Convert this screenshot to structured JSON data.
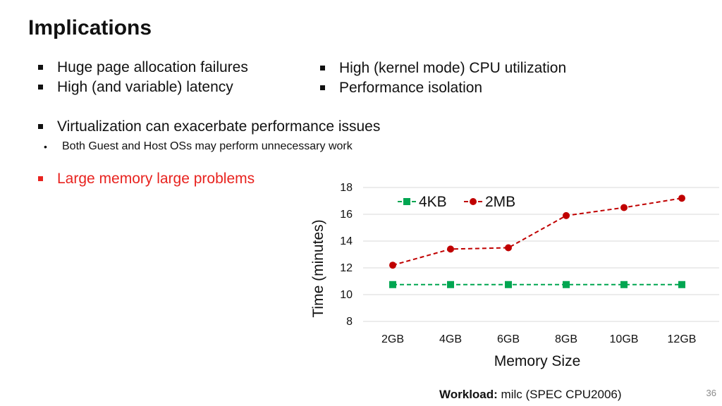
{
  "slide": {
    "title": "Implications",
    "bullets_left": [
      "Huge page allocation failures",
      "High (and variable) latency"
    ],
    "bullets_right": [
      "High (kernel mode) CPU utilization",
      "Performance isolation"
    ],
    "virtualization": {
      "text": "Virtualization can exacerbate performance issues",
      "sub": "Both Guest and Host OSs may perform unnecessary work"
    },
    "highlight": {
      "text": "Large memory large problems",
      "color": "#e8231f"
    },
    "workload": {
      "label": "Workload:",
      "value": "milc (SPEC CPU2006)"
    },
    "page_number": "36"
  },
  "chart_data": {
    "type": "line",
    "categories": [
      "2GB",
      "4GB",
      "6GB",
      "8GB",
      "10GB",
      "12GB"
    ],
    "series": [
      {
        "name": "4KB",
        "values": [
          10.75,
          10.75,
          10.75,
          10.75,
          10.75,
          10.75
        ],
        "color": "#00a651",
        "marker": "square",
        "line": "dashed"
      },
      {
        "name": "2MB",
        "values": [
          12.2,
          13.4,
          13.5,
          15.9,
          16.5,
          17.2
        ],
        "color": "#c00000",
        "marker": "circle",
        "line": "dashed"
      }
    ],
    "xlabel": "Memory Size",
    "ylabel": "Time (minutes)",
    "ylim": [
      8,
      18
    ],
    "yticks": [
      8,
      10,
      12,
      14,
      16,
      18
    ],
    "grid": true,
    "legend": "top"
  }
}
